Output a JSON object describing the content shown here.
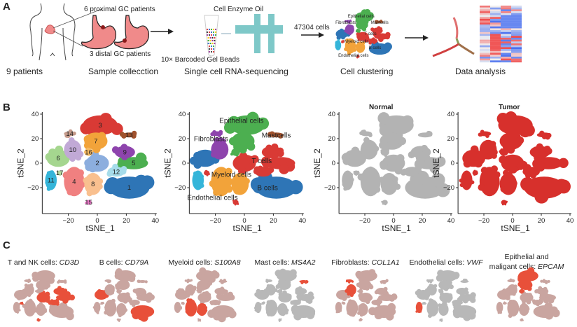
{
  "panel_a": {
    "label": "A",
    "proximal": "6 proximal GC patients",
    "distal": "3 distal GC patients",
    "step1": "9 patients",
    "step2": "Sample collecction",
    "reagents": "Cell Enzyme  Oil",
    "beads": "10× Barcoded Gel Beads",
    "step3": "Single cell RNA-sequencing",
    "cells": "47304 cells",
    "step4": "Cell clustering",
    "step5": "Data analysis",
    "mini_labels": [
      "Epithelial cells",
      "Fibroblasts",
      "Mastcells",
      "T cells",
      "Myeloid cells",
      "B cells",
      "Endothelial cells"
    ]
  },
  "panel_b": {
    "label": "B",
    "xlabel": "tSNE_1",
    "ylabel": "tSNE_2",
    "xticks": [
      "−20",
      "0",
      "20",
      "40"
    ],
    "yticks": [
      "40",
      "20",
      "0",
      "−20"
    ],
    "normal_title": "Normal",
    "tumor_title": "Tumor",
    "type_labels": {
      "epi": "Epithelial cells",
      "mast": "Mastcells",
      "fib": "Fibroblasts",
      "t": "T cells",
      "mye": "Myeloid cells",
      "b": "B cells",
      "endo": "Endothelial cells"
    }
  },
  "panel_c": {
    "label": "C",
    "markers": [
      {
        "cell": "T and NK cells: ",
        "gene": "CD3D",
        "hi": [
          2,
          5,
          9,
          12,
          15,
          17
        ]
      },
      {
        "cell": "B cells: ",
        "gene": "CD79A",
        "hi": [
          1,
          6
        ]
      },
      {
        "cell": "Myeloid cells: ",
        "gene": "S100A8",
        "hi": [
          4,
          8
        ]
      },
      {
        "cell": "Mast cells: ",
        "gene": "MS4A2",
        "hi": [
          13
        ]
      },
      {
        "cell": "Fibroblasts: ",
        "gene": "COL1A1",
        "hi": [
          10,
          14
        ]
      },
      {
        "cell": "Endothelial cells: ",
        "gene": "VWF",
        "hi": [
          11
        ]
      },
      {
        "cell": "Epithelial and",
        "cell2": "maligant cells: ",
        "gene": "EPCAM",
        "hi": [
          3,
          7,
          16
        ]
      }
    ]
  },
  "chart_data": {
    "type": "scatter",
    "xlabel": "tSNE_1",
    "ylabel": "tSNE_2",
    "xlim": [
      -38,
      40
    ],
    "ylim": [
      -38,
      42
    ],
    "clusters": [
      {
        "id": 1,
        "x": 22,
        "y": -20,
        "rx": 14,
        "ry": 9,
        "type": "b",
        "color": "#2e75b6"
      },
      {
        "id": 2,
        "x": 0,
        "y": 0,
        "rx": 8,
        "ry": 7,
        "type": "t",
        "color": "#8caede"
      },
      {
        "id": 3,
        "x": 2,
        "y": 31,
        "rx": 12,
        "ry": 8,
        "type": "epi",
        "color": "#d93a35"
      },
      {
        "id": 4,
        "x": -16,
        "y": -15,
        "rx": 7,
        "ry": 12,
        "type": "mye",
        "color": "#f08080"
      },
      {
        "id": 5,
        "x": 25,
        "y": 0,
        "rx": 10,
        "ry": 5,
        "type": "t",
        "color": "#4caf50"
      },
      {
        "id": 6,
        "x": -27,
        "y": 4,
        "rx": 8,
        "ry": 7,
        "type": "b",
        "color": "#a5d68f"
      },
      {
        "id": 7,
        "x": -1,
        "y": 18,
        "rx": 8,
        "ry": 7,
        "type": "epi",
        "color": "#f2a33a"
      },
      {
        "id": 8,
        "x": -3,
        "y": -17,
        "rx": 6,
        "ry": 9,
        "type": "mye",
        "color": "#f9c08f"
      },
      {
        "id": 9,
        "x": 19,
        "y": 9,
        "rx": 7,
        "ry": 5,
        "type": "t",
        "color": "#8e44ad"
      },
      {
        "id": 10,
        "x": -17,
        "y": 11,
        "rx": 6,
        "ry": 8,
        "type": "fib",
        "color": "#c1a9d6"
      },
      {
        "id": 11,
        "x": -32,
        "y": -14,
        "rx": 4,
        "ry": 8,
        "type": "endo",
        "color": "#35b5d9"
      },
      {
        "id": 12,
        "x": 13,
        "y": -7,
        "rx": 6,
        "ry": 4,
        "type": "t",
        "color": "#a6dcea"
      },
      {
        "id": 13,
        "x": 22,
        "y": 23,
        "rx": 5,
        "ry": 2,
        "type": "mast",
        "color": "#a0522d"
      },
      {
        "id": 14,
        "x": -19,
        "y": 24,
        "rx": 4,
        "ry": 2,
        "type": "fib",
        "color": "#c49a8a"
      },
      {
        "id": 15,
        "x": -6,
        "y": -32,
        "rx": 2,
        "ry": 2,
        "type": "t",
        "color": "#e377c2"
      },
      {
        "id": 16,
        "x": -6,
        "y": 9,
        "rx": 3,
        "ry": 3,
        "type": "epi",
        "color": "#f5b860"
      },
      {
        "id": 17,
        "x": -26,
        "y": -8,
        "rx": 2,
        "ry": 2,
        "type": "t",
        "color": "#b5d9a0"
      }
    ],
    "type_colors": {
      "b": "#2e75b6",
      "t": "#d93a35",
      "epi": "#4caf50",
      "mye": "#f2a33a",
      "fib": "#8e44ad",
      "endo": "#35b5d9",
      "mast": "#a0522d"
    },
    "normal_color": "#b3b3b3",
    "tumor_color": "#d7302c",
    "expr_color": "#e8503a"
  }
}
